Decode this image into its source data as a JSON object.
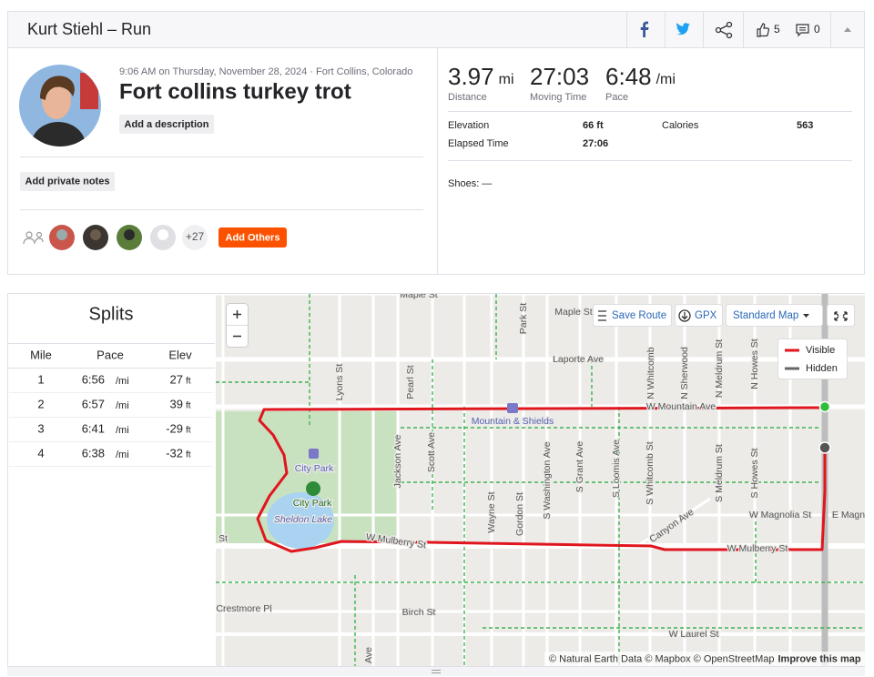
{
  "header": {
    "title": "Kurt Stiehl – Run",
    "kudos_count": 5,
    "comment_count": 0
  },
  "activity": {
    "meta": "9:06 AM on Thursday, November 28, 2024 · Fort Collins, Colorado",
    "name": "Fort collins turkey trot",
    "add_description": "Add a description",
    "add_private_notes": "Add private notes",
    "others_count": "+27",
    "add_others": "Add Others"
  },
  "stats": {
    "primary": [
      {
        "value": "3.97",
        "unit": "mi",
        "label": "Distance"
      },
      {
        "value": "27:03",
        "label": "Moving Time"
      },
      {
        "value": "6:48",
        "unit": "/mi",
        "label": "Pace"
      }
    ],
    "secondary": [
      {
        "label": "Elevation",
        "value": "66 ft"
      },
      {
        "label": "Calories",
        "value": "563"
      },
      {
        "label": "Elapsed Time",
        "value": "27:06"
      }
    ],
    "shoes": "Shoes: —"
  },
  "splits": {
    "title": "Splits",
    "columns": [
      "Mile",
      "Pace",
      "Elev"
    ],
    "rows": [
      {
        "mile": "1",
        "pace": "6:56",
        "pace_unit": "/mi",
        "elev": "27",
        "elev_unit": "ft"
      },
      {
        "mile": "2",
        "pace": "6:57",
        "pace_unit": "/mi",
        "elev": "39",
        "elev_unit": "ft"
      },
      {
        "mile": "3",
        "pace": "6:41",
        "pace_unit": "/mi",
        "elev": "-29",
        "elev_unit": "ft"
      },
      {
        "mile": "4",
        "pace": "6:38",
        "pace_unit": "/mi",
        "elev": "-32",
        "elev_unit": "ft"
      }
    ]
  },
  "map": {
    "save_route": "Save Route",
    "gpx": "GPX",
    "map_style": "Standard Map",
    "legend": [
      "Visible",
      "Hidden"
    ],
    "attribution": "© Natural Earth Data © Mapbox © OpenStreetMap",
    "improve": "Improve this map",
    "labels": [
      "Maple St",
      "Maple St",
      "Park St",
      "Laporte Ave",
      "N Whitcomb",
      "N Sherwood",
      "N Meldrum St",
      "N Howes St",
      "Lyons St",
      "Pearl St",
      "W Mountain Ave",
      "Mountain & Shields",
      "City Park",
      "City Park",
      "Sheldon Lake",
      "Jackson Ave",
      "Scott Ave",
      "Wayne St",
      "Gordon St",
      "S Washington Ave",
      "S Grant Ave",
      "S Loomis Ave",
      "S Whitcomb St",
      "S Meldrum St",
      "S Howes St",
      "Canyon Ave",
      "W Magnolia St",
      "E Magn",
      "W Mulberry St",
      "W Mulberry St",
      "St",
      "Crestmore Pl",
      "Birch St",
      "W Laurel St",
      "Ave"
    ]
  }
}
